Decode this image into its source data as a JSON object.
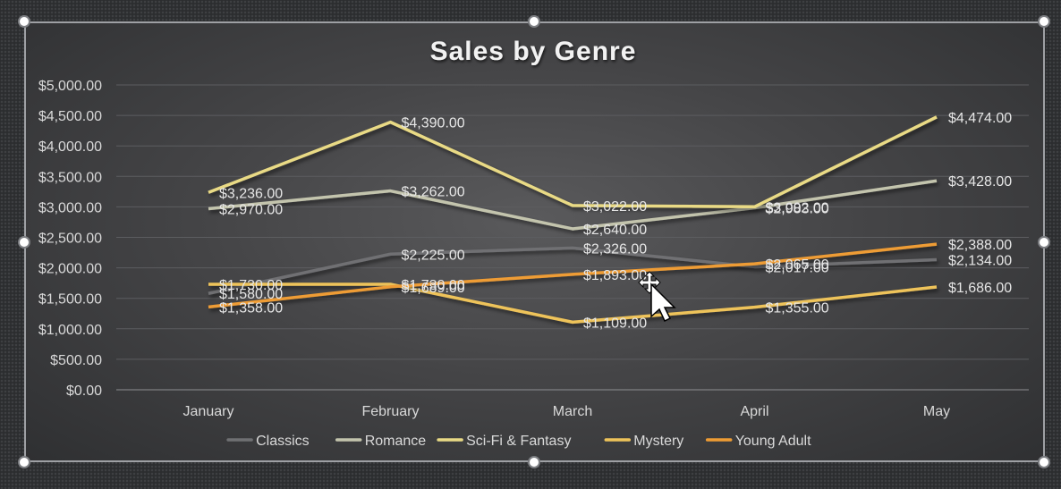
{
  "chart_data": {
    "type": "line",
    "title": "Sales by Genre",
    "xlabel": "",
    "ylabel": "",
    "categories": [
      "January",
      "February",
      "March",
      "April",
      "May"
    ],
    "y_ticks": [
      "$0.00",
      "$500.00",
      "$1,000.00",
      "$1,500.00",
      "$2,000.00",
      "$2,500.00",
      "$3,000.00",
      "$3,500.00",
      "$4,000.00",
      "$4,500.00",
      "$5,000.00"
    ],
    "ylim": [
      0,
      5000
    ],
    "grid": true,
    "legend_position": "bottom",
    "series": [
      {
        "name": "Classics",
        "color": "#6f7073",
        "values": [
          1580,
          2225,
          2326,
          2017,
          2134
        ],
        "labels": [
          "$1,580.00",
          "$2,225.00",
          "$2,326.00",
          "$2,017.00",
          "$2,134.00"
        ]
      },
      {
        "name": "Romance",
        "color": "#c3c4ad",
        "values": [
          2970,
          3262,
          2640,
          2983,
          3428
        ],
        "labels": [
          "$2,970.00",
          "$3,262.00",
          "$2,640.00",
          "$2,983.00",
          "$3,428.00"
        ]
      },
      {
        "name": "Sci-Fi & Fantasy",
        "color": "#e9da85",
        "values": [
          3236,
          4390,
          3022,
          3002,
          4474
        ],
        "labels": [
          "$3,236.00",
          "$4,390.00",
          "$3,022.00",
          "$3,002.00",
          "$4,474.00"
        ]
      },
      {
        "name": "Mystery",
        "color": "#eec35a",
        "values": [
          1730,
          1730,
          1109,
          1355,
          1686
        ],
        "labels": [
          "$1,730.00",
          "$1,730.00",
          "$1,109.00",
          "$1,355.00",
          "$1,686.00"
        ]
      },
      {
        "name": "Young Adult",
        "color": "#ee9c34",
        "values": [
          1358,
          1689,
          1893,
          2065,
          2388
        ],
        "labels": [
          "$1,358.00",
          "$1,689.00",
          "$1,893.00",
          "$2,065.00",
          "$2,388.00"
        ]
      }
    ]
  }
}
